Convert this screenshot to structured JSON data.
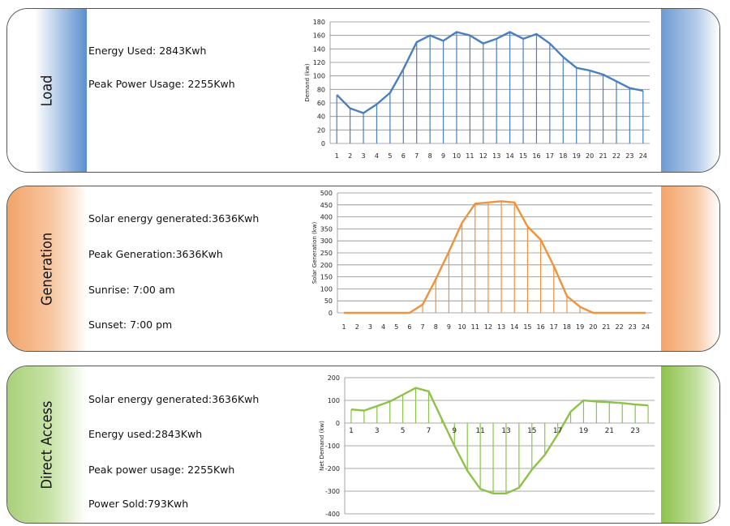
{
  "panels": [
    {
      "label": "Load",
      "lines": [
        "Energy Used: 2843Kwh",
        "Peak Power Usage:  2255Kwh"
      ]
    },
    {
      "label": "Generation",
      "lines": [
        "Solar energy generated:3636Kwh",
        "Peak Generation:3636Kwh",
        "Sunrise:  7:00 am",
        "Sunset:  7:00 pm"
      ]
    },
    {
      "label": "Direct Access",
      "lines": [
        "Solar energy generated:3636Kwh",
        "Energy used:2843Kwh",
        "Peak power usage: 2255Kwh",
        "Power Sold:793Kwh"
      ]
    }
  ],
  "colors": {
    "load": "#4a7fc1",
    "generation": "#f0923c",
    "direct": "#8dc24a"
  },
  "chart_data": [
    {
      "type": "area",
      "ylabel": "Demand (kw)",
      "ylim": [
        0,
        180
      ],
      "yticks": [
        0,
        20,
        40,
        60,
        80,
        100,
        120,
        140,
        160,
        180
      ],
      "x": [
        1,
        2,
        3,
        4,
        5,
        6,
        7,
        8,
        9,
        10,
        11,
        12,
        13,
        14,
        15,
        16,
        17,
        18,
        19,
        20,
        21,
        22,
        23,
        24
      ],
      "xticklabels": [
        "1",
        "2",
        "3",
        "4",
        "5",
        "6",
        "7",
        "8",
        "9",
        "10",
        "11",
        "12",
        "13",
        "14",
        "15",
        "16",
        "17",
        "18",
        "19",
        "20",
        "21",
        "22",
        "23",
        "24"
      ],
      "values": [
        72,
        52,
        45,
        58,
        75,
        110,
        150,
        160,
        152,
        165,
        160,
        148,
        155,
        165,
        155,
        162,
        148,
        128,
        112,
        108,
        102,
        92,
        82,
        78
      ],
      "grid": true
    },
    {
      "type": "area",
      "ylabel": "Solar Generation (kw)",
      "ylim": [
        0,
        500
      ],
      "yticks": [
        0,
        50,
        100,
        150,
        200,
        250,
        300,
        350,
        400,
        450,
        500
      ],
      "x": [
        1,
        2,
        3,
        4,
        5,
        6,
        7,
        8,
        9,
        10,
        11,
        12,
        13,
        14,
        15,
        16,
        17,
        18,
        19,
        20,
        21,
        22,
        23,
        24
      ],
      "xticklabels": [
        "1",
        "2",
        "3",
        "4",
        "5",
        "6",
        "7",
        "8",
        "9",
        "10",
        "11",
        "12",
        "13",
        "14",
        "15",
        "16",
        "17",
        "18",
        "19",
        "20",
        "21",
        "22",
        "23",
        "24"
      ],
      "values": [
        0,
        0,
        0,
        0,
        0,
        0,
        35,
        140,
        255,
        375,
        455,
        460,
        465,
        460,
        360,
        305,
        195,
        70,
        25,
        0,
        0,
        0,
        0,
        0
      ],
      "grid": true
    },
    {
      "type": "area",
      "ylabel": "Net Demand (kw)",
      "ylim": [
        -400,
        200
      ],
      "yticks": [
        -400,
        -300,
        -200,
        -100,
        0,
        100,
        200
      ],
      "x": [
        1,
        2,
        3,
        4,
        5,
        6,
        7,
        8,
        9,
        10,
        11,
        12,
        13,
        14,
        15,
        16,
        17,
        18,
        19,
        20,
        21,
        22,
        23,
        24
      ],
      "xticklabels": [
        "1",
        "3",
        "5",
        "7",
        "9",
        "11",
        "13",
        "15",
        "17",
        "19",
        "21",
        "23"
      ],
      "values": [
        60,
        55,
        75,
        95,
        125,
        155,
        140,
        20,
        -100,
        -210,
        -290,
        -310,
        -310,
        -285,
        -205,
        -140,
        -50,
        50,
        100,
        95,
        92,
        88,
        82,
        78
      ],
      "grid": true
    }
  ]
}
